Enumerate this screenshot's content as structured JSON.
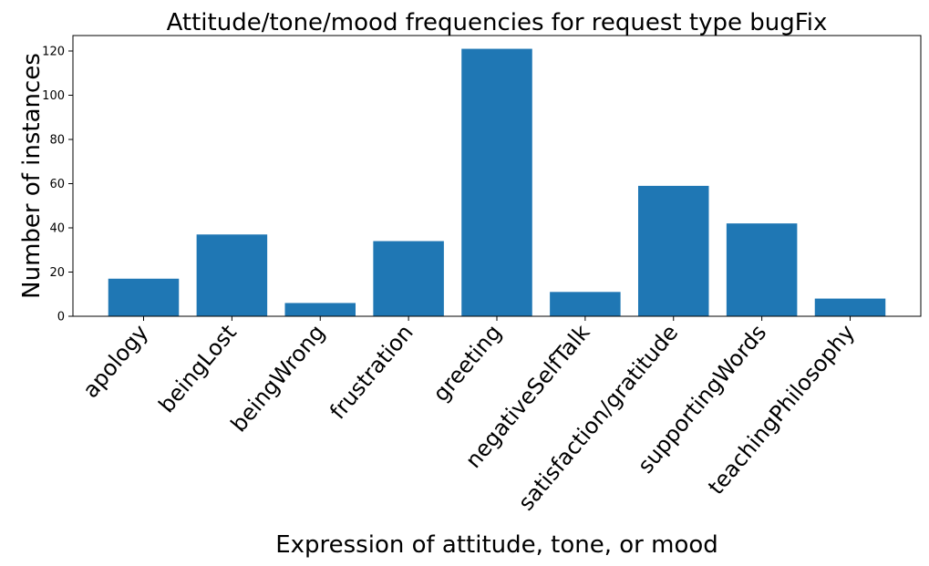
{
  "chart_data": {
    "type": "bar",
    "title": "Attitude/tone/mood frequencies for request type bugFix",
    "xlabel": "Expression of attitude, tone, or mood",
    "ylabel": "Number of instances",
    "categories": [
      "apology",
      "beingLost",
      "beingWrong",
      "frustration",
      "greeting",
      "negativeSelfTalk",
      "satisfaction/gratitude",
      "supportingWords",
      "teachingPhilosophy"
    ],
    "values": [
      17,
      37,
      6,
      34,
      121,
      11,
      59,
      42,
      8
    ],
    "ylim": [
      0,
      127
    ],
    "yticks": [
      0,
      20,
      40,
      60,
      80,
      100,
      120
    ],
    "bar_color": "#1f77b4",
    "grid": false,
    "legend": "none"
  }
}
